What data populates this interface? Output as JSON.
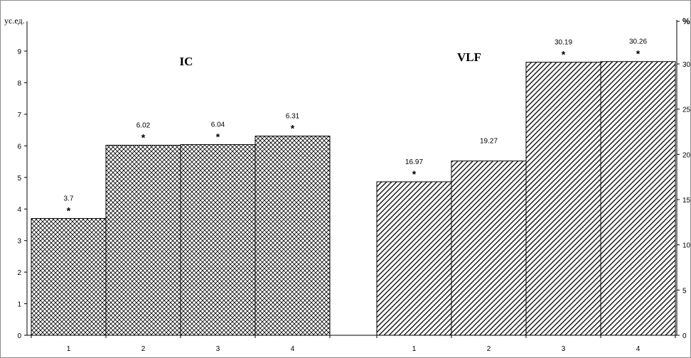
{
  "chart_data": [
    {
      "type": "bar",
      "title": "IC",
      "ylabel": "ус.ед.",
      "axis": "left",
      "ylim": [
        0,
        9
      ],
      "yticks": [
        "0",
        "1",
        "2",
        "3",
        "4",
        "5",
        "6",
        "7",
        "8",
        "9"
      ],
      "categories": [
        "1",
        "2",
        "3",
        "4"
      ],
      "values": [
        3.7,
        6.02,
        6.04,
        6.31
      ],
      "value_labels": [
        "3.7",
        "6.02",
        "6.04",
        "6.31"
      ],
      "significance": [
        "*",
        "*",
        "*",
        "*"
      ],
      "pattern": "crosshatch"
    },
    {
      "type": "bar",
      "title": "VLF",
      "ylabel": "%",
      "axis": "right",
      "ylim": [
        0,
        35
      ],
      "yticks": [
        "0",
        "5",
        "10",
        "15",
        "20",
        "25",
        "30"
      ],
      "categories": [
        "1",
        "2",
        "3",
        "4"
      ],
      "values": [
        16.97,
        19.27,
        30.19,
        30.26
      ],
      "value_labels": [
        "16.97",
        "19.27",
        "30.19",
        "30.26"
      ],
      "significance": [
        "*",
        "",
        "*",
        "*"
      ],
      "pattern": "diagonal"
    }
  ]
}
